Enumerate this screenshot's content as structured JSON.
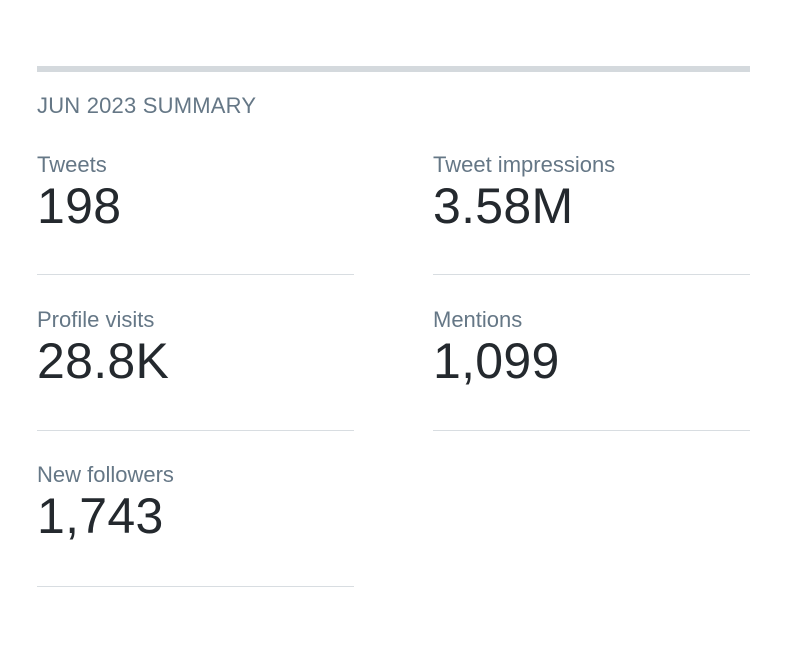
{
  "summary": {
    "heading": "JUN 2023 SUMMARY",
    "stats": [
      {
        "label": "Tweets",
        "value": "198"
      },
      {
        "label": "Tweet impressions",
        "value": "3.58M"
      },
      {
        "label": "Profile visits",
        "value": "28.8K"
      },
      {
        "label": "Mentions",
        "value": "1,099"
      },
      {
        "label": "New followers",
        "value": "1,743"
      }
    ]
  },
  "colors": {
    "label": "#657786",
    "value": "#24292e",
    "rule": "#d4d9dd",
    "divider": "#d8dde1"
  }
}
